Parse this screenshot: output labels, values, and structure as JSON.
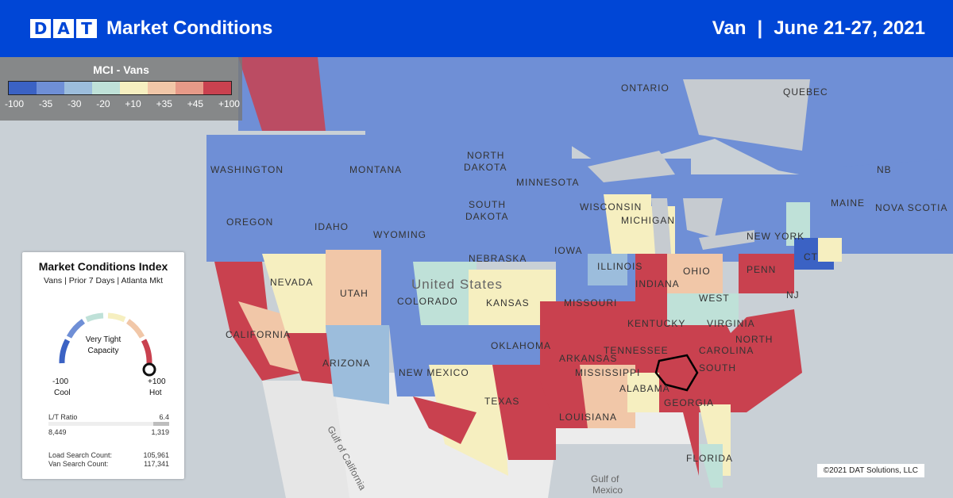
{
  "header": {
    "logo_letters": [
      "D",
      "A",
      "T"
    ],
    "title": "Market Conditions",
    "equipment": "Van",
    "separator": "|",
    "date_range": "June 21-27, 2021"
  },
  "legend": {
    "title": "MCI - Vans",
    "ticks": [
      "-100",
      "-35",
      "-30",
      "-20",
      "+10",
      "+35",
      "+45",
      "+100"
    ],
    "colors": [
      "#3b62c4",
      "#6f8fd6",
      "#9cbddc",
      "#bfe1d8",
      "#f6efc0",
      "#f1c7a8",
      "#e79a88",
      "#c9414f"
    ]
  },
  "panel": {
    "title": "Market Conditions Index",
    "subtitle": "Vans | Prior 7 Days | Atlanta Mkt",
    "capacity_line1": "Very Tight",
    "capacity_line2": "Capacity",
    "min_value": "-100",
    "min_label": "Cool",
    "max_value": "+100",
    "max_label": "Hot",
    "gauge_value_fraction": 1.0,
    "lt_label": "L/T Ratio",
    "lt_value": "6.4",
    "loads_value": "8,449",
    "trucks_value": "1,319",
    "load_search_label": "Load Search Count:",
    "load_search_value": "105,961",
    "van_search_label": "Van Search Count:",
    "van_search_value": "117,341"
  },
  "map_labels": {
    "ontario": "ONTARIO",
    "quebec": "QUEBEC",
    "washington": "WASHINGTON",
    "montana": "MONTANA",
    "north_dakota_1": "NORTH",
    "north_dakota_2": "DAKOTA",
    "minnesota": "MINNESOTA",
    "oregon": "OREGON",
    "idaho": "IDAHO",
    "south_dakota_1": "SOUTH",
    "south_dakota_2": "DAKOTA",
    "wisconsin": "WISCONSIN",
    "michigan": "MICHIGAN",
    "wyoming": "WYOMING",
    "nebraska": "NEBRASKA",
    "iowa": "IOWA",
    "nevada": "NEVADA",
    "utah": "UTAH",
    "colorado": "COLORADO",
    "united_states": "United States",
    "kansas": "KANSAS",
    "missouri": "MISSOURI",
    "illinois": "ILLINOIS",
    "indiana": "INDIANA",
    "ohio": "OHIO",
    "penn": "PENN",
    "new_york": "NEW YORK",
    "maine": "MAINE",
    "nova_scotia": "NOVA SCOTIA",
    "nb": "NB",
    "ct": "CT",
    "nj": "NJ",
    "california": "CALIFORNIA",
    "arizona": "ARIZONA",
    "new_mexico": "NEW MEXICO",
    "oklahoma": "OKLAHOMA",
    "arkansas": "ARKANSAS",
    "tennessee": "TENNESSEE",
    "kentucky": "KENTUCKY",
    "west_virginia": "WEST",
    "virginia": "VIRGINIA",
    "north": "NORTH",
    "carolina": "CAROLINA",
    "south": "SOUTH",
    "texas": "TEXAS",
    "mississippi": "MISSISSIPPI",
    "alabama": "ALABAMA",
    "georgia": "GEORGIA",
    "louisiana": "LOUISIANA",
    "florida": "FLORIDA",
    "gulf_of_california": "Gulf of California",
    "gulf_of_mexico_1": "Gulf of",
    "gulf_of_mexico_2": "Mexico"
  },
  "copyright": "©2021 DAT Solutions, LLC"
}
